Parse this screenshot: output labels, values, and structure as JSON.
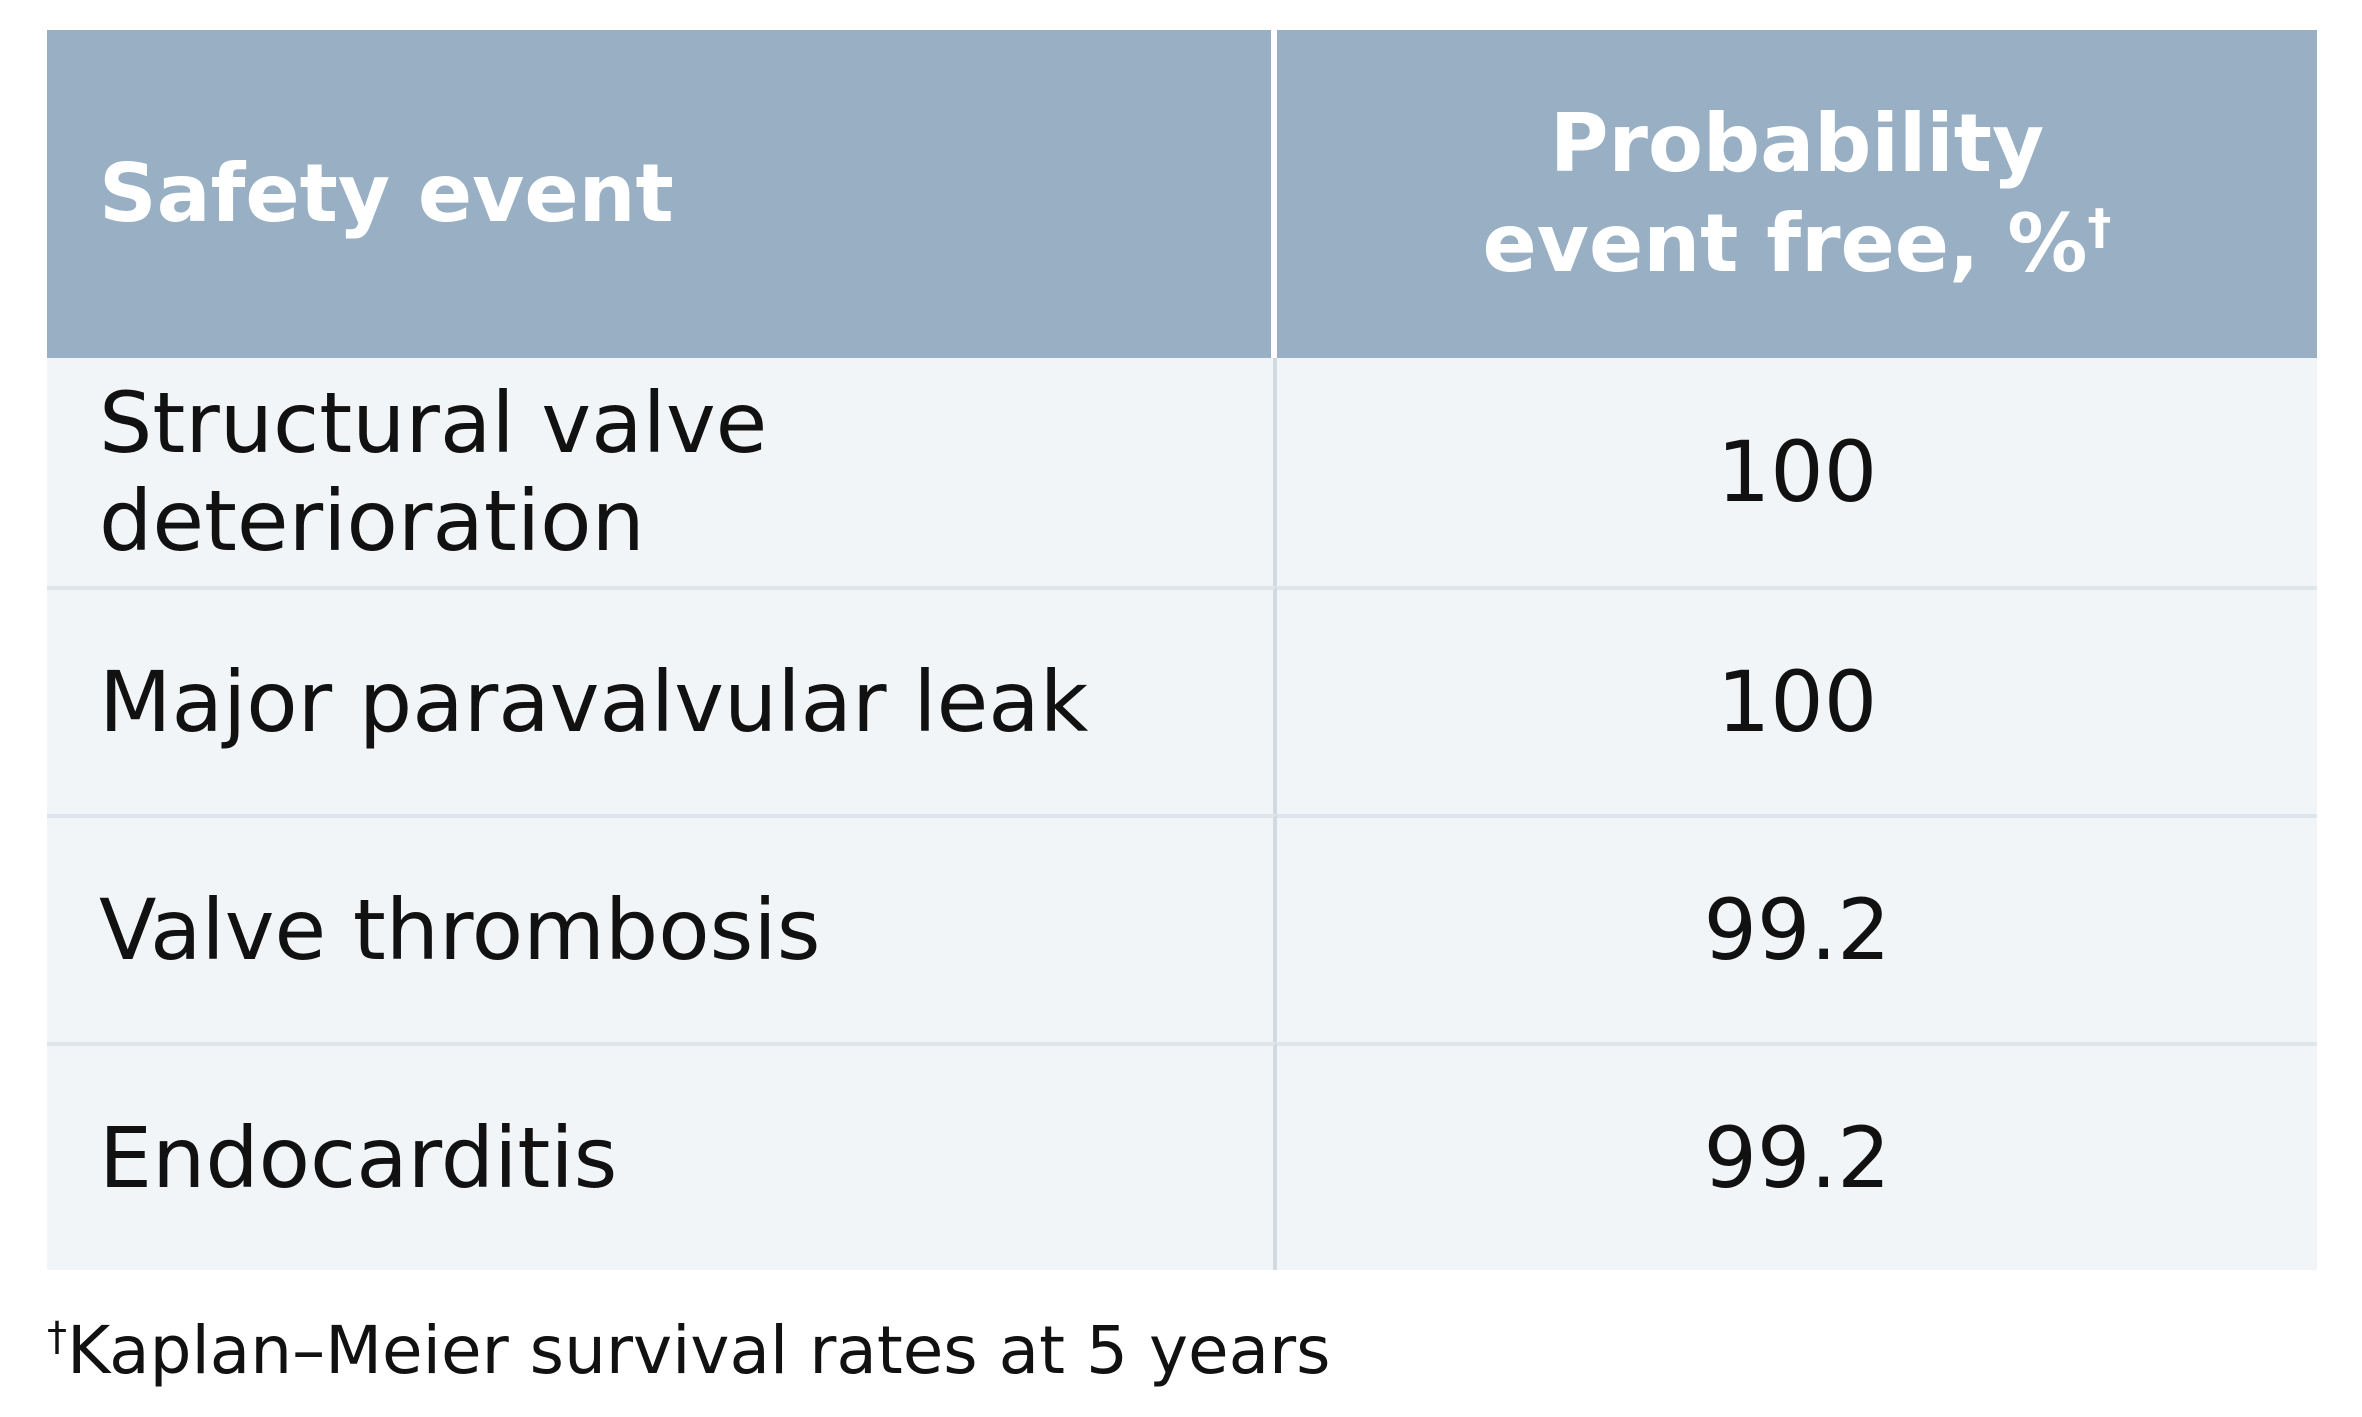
{
  "table": {
    "headers": {
      "event": "Safety event",
      "probability_line1": "Probability",
      "probability_line2": "event free, %",
      "probability_mark": "†"
    },
    "rows": [
      {
        "event": "Structural valve deterioration",
        "probability": "100"
      },
      {
        "event": "Major paravalvular leak",
        "probability": "100"
      },
      {
        "event": "Valve thrombosis",
        "probability": "99.2"
      },
      {
        "event": "Endocarditis",
        "probability": "99.2"
      }
    ]
  },
  "footnote": {
    "mark": "†",
    "text": "Kaplan–Meier survival rates at 5 years"
  }
}
